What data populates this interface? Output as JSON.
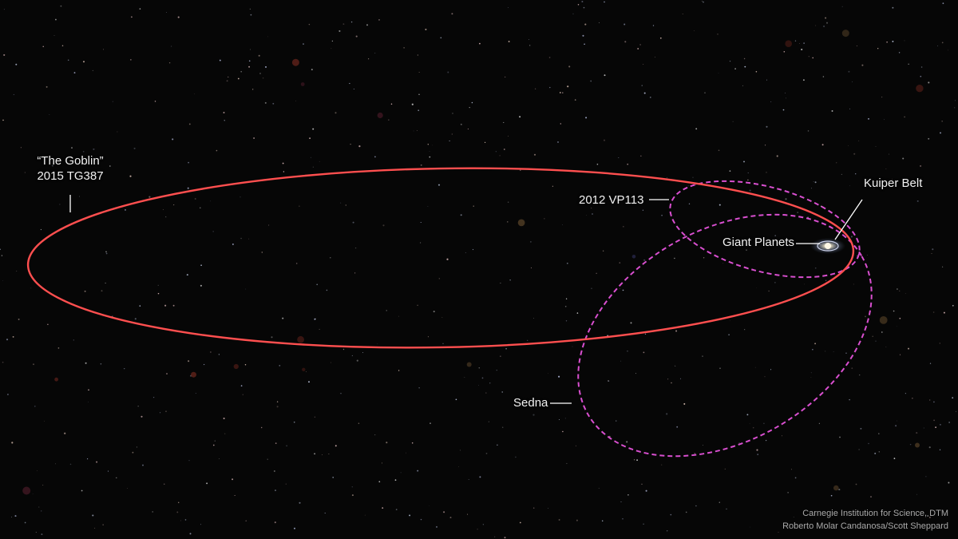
{
  "labels": {
    "goblin_nickname": "“The Goblin”",
    "goblin_designation": "2015 TG387",
    "vp113": "2012 VP113",
    "kuiper_belt": "Kuiper Belt",
    "giant_planets": "Giant Planets",
    "sedna": "Sedna"
  },
  "credit": {
    "line1": "Carnegie Institution for Science, DTM",
    "line2": "Roberto Molar Candanosa/Scott Sheppard"
  },
  "colors": {
    "background": "#060606",
    "goblin_orbit": "#ff4f4f",
    "dashed_orbits": "#d94fd0",
    "label_text": "#f2f2f2",
    "leader_lines": "#ffffff"
  }
}
